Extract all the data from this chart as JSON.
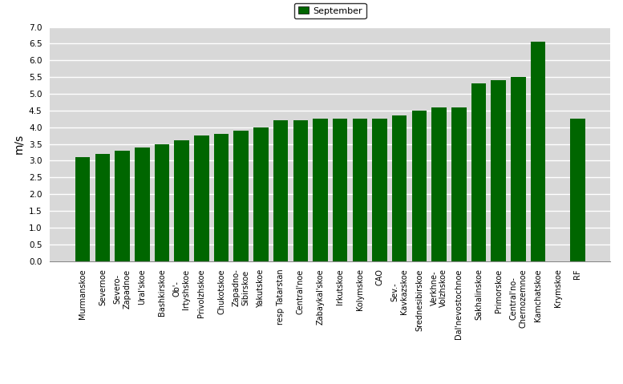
{
  "categories": [
    "Murmanskoe",
    "Severnoe",
    "Severo-\nZapadnoe",
    "Ural'skoe",
    "Bashkirskoe",
    "Ob'-\nIrtyshskoe",
    "Privolzhskoe",
    "Chukotskoe",
    "Zapadno-\nSibirskoe",
    "Yakutskoe",
    "resp Tatarstan",
    "Central'noe",
    "Zabaykal'skoe",
    "Irkutskoe",
    "Kolymskoe",
    "CAO",
    "Sev.-\nKavkazskoe",
    "Srednesibirskoe",
    "Verkhne-\nVolzhskoe",
    "Dal'nevostochnoe",
    "Sakhalinskoe",
    "Primorskoe",
    "Central'no-\nChernozemnoe",
    "Kamchatskoe",
    "Krymskoe",
    "RF"
  ],
  "values": [
    3.1,
    3.2,
    3.3,
    3.4,
    3.5,
    3.6,
    3.75,
    3.8,
    3.9,
    4.0,
    4.2,
    4.2,
    4.25,
    4.25,
    4.25,
    4.25,
    4.35,
    4.5,
    4.6,
    4.6,
    5.3,
    5.4,
    5.5,
    6.55,
    0.0,
    4.25
  ],
  "bar_color": "#006600",
  "ylabel": "m/s",
  "ylim": [
    0,
    7
  ],
  "yticks": [
    0,
    0.5,
    1.0,
    1.5,
    2.0,
    2.5,
    3.0,
    3.5,
    4.0,
    4.5,
    5.0,
    5.5,
    6.0,
    6.5,
    7.0
  ],
  "legend_label": "September",
  "legend_color": "#006600",
  "bg_color": "#d8d8d8",
  "grid_color": "white",
  "tick_fontsize": 7,
  "ylabel_fontsize": 10
}
